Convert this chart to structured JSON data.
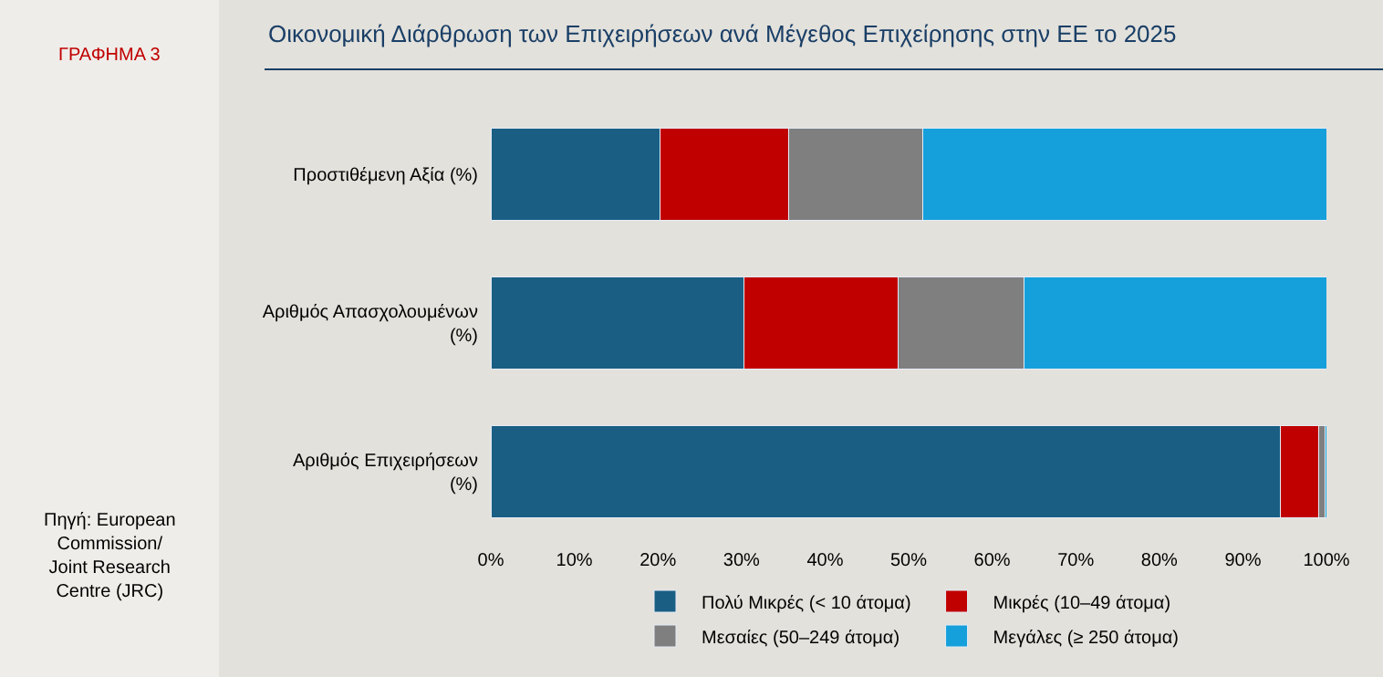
{
  "chart_data": {
    "type": "bar",
    "orientation": "horizontal",
    "stacked": true,
    "title": "Οικονομική Διάρθρωση των Επιχειρήσεων ανά Μέγεθος Επιχείρησης στην ΕΕ το 2025",
    "subtitle": "ΓΡΑΦΗΜΑ 3",
    "annotations": [
      "Πηγή: European Commission/ Joint Research Centre (JRC)"
    ],
    "categories": [
      "Προστιθέμενη Αξία (%)",
      "Αριθμός Απασχολουμένων (%)",
      "Αριθμός Επιχειρήσεων (%)"
    ],
    "series": [
      {
        "name": "Πολύ Μικρές (< 10 άτομα)",
        "color": "#1a5e84",
        "values": [
          20.3,
          30.3,
          94.5
        ]
      },
      {
        "name": "Μικρές (10–49 άτομα)",
        "color": "#c00000",
        "values": [
          15.3,
          18.4,
          4.6
        ]
      },
      {
        "name": "Μεσαίες (50–249 άτομα)",
        "color": "#7f7f7f",
        "values": [
          16.1,
          15.1,
          0.7
        ]
      },
      {
        "name": "Μεγάλες (≥ 250 άτομα)",
        "color": "#16a0db",
        "values": [
          48.3,
          36.2,
          0.2
        ]
      }
    ],
    "xlim": [
      0,
      100
    ],
    "xticks": [
      {
        "value": 0,
        "label": "0%"
      },
      {
        "value": 10,
        "label": "10%"
      },
      {
        "value": 20,
        "label": "20%"
      },
      {
        "value": 30,
        "label": "30%"
      },
      {
        "value": 40,
        "label": "40%"
      },
      {
        "value": 50,
        "label": "50%"
      },
      {
        "value": 60,
        "label": "60%"
      },
      {
        "value": 70,
        "label": "70%"
      },
      {
        "value": 80,
        "label": "80%"
      },
      {
        "value": 90,
        "label": "90%"
      },
      {
        "value": 100,
        "label": "100%"
      }
    ],
    "grid": false,
    "legend": "bottom"
  }
}
